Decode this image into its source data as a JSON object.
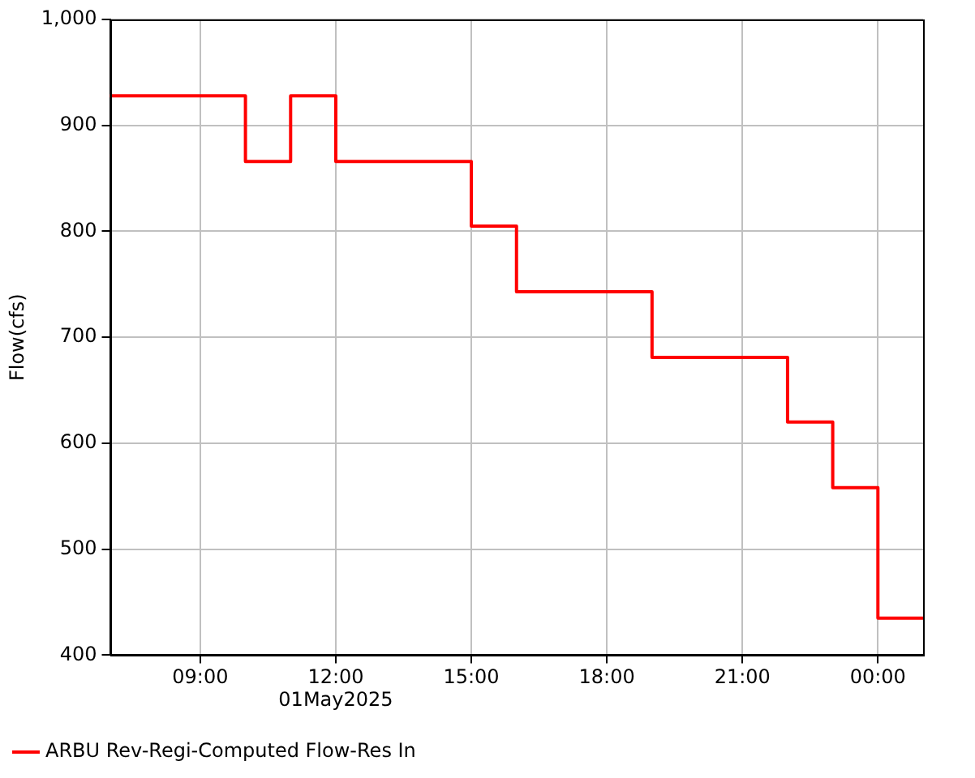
{
  "chart_data": {
    "type": "step",
    "ylabel": "Flow(cfs)",
    "xlabel": "01May2025",
    "x": [
      7,
      10,
      11,
      12,
      15,
      16,
      19,
      22,
      23,
      24,
      25
    ],
    "series": [
      {
        "name": "ARBU Rev-Regi-Computed Flow-Res In",
        "color": "#ff0000",
        "values": [
          928,
          866,
          928,
          866,
          805,
          743,
          681,
          620,
          558,
          435,
          435
        ]
      }
    ],
    "xlim": [
      7,
      25
    ],
    "xticks": [
      {
        "value": 9,
        "label": "09:00"
      },
      {
        "value": 12,
        "label": "12:00"
      },
      {
        "value": 15,
        "label": "15:00"
      },
      {
        "value": 18,
        "label": "18:00"
      },
      {
        "value": 21,
        "label": "21:00"
      },
      {
        "value": 24,
        "label": "00:00"
      }
    ],
    "ylim": [
      400,
      1000
    ],
    "yticks": [
      400,
      500,
      600,
      700,
      800,
      900,
      {
        "value": 1000,
        "label": "1,000"
      }
    ],
    "grid": true,
    "legend": "bottom left",
    "line_style": "solid",
    "marker": "none"
  }
}
